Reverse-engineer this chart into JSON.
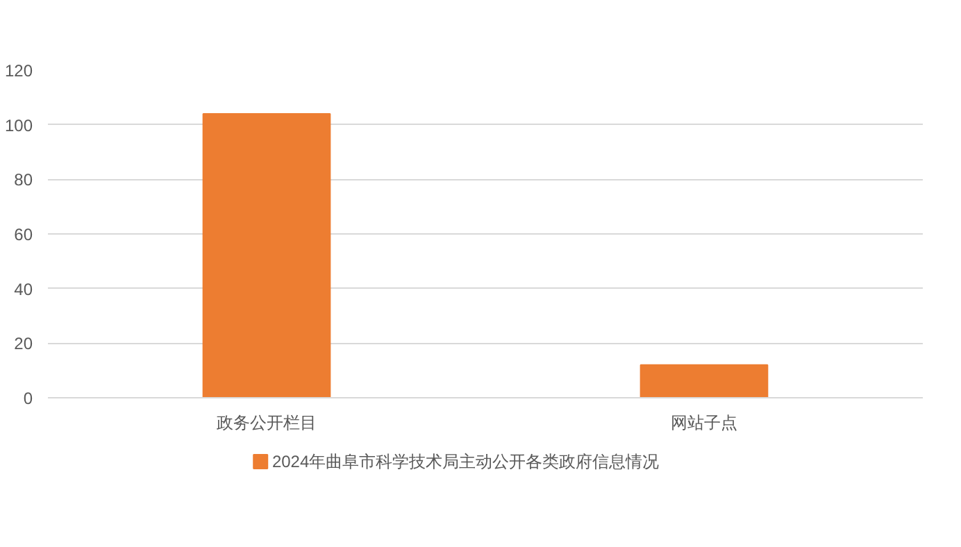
{
  "chart_data": {
    "type": "bar",
    "categories": [
      "政务公开栏目",
      "网站子点"
    ],
    "series": [
      {
        "name": "2024年曲阜市科学技术局主动公开各类政府信息情况",
        "color": "#ed7d31",
        "values": [
          104,
          12
        ]
      }
    ],
    "ylim": [
      0,
      120
    ],
    "yticks": [
      0,
      20,
      40,
      60,
      80,
      100,
      120
    ],
    "grid": "y",
    "legend": "bottom"
  }
}
